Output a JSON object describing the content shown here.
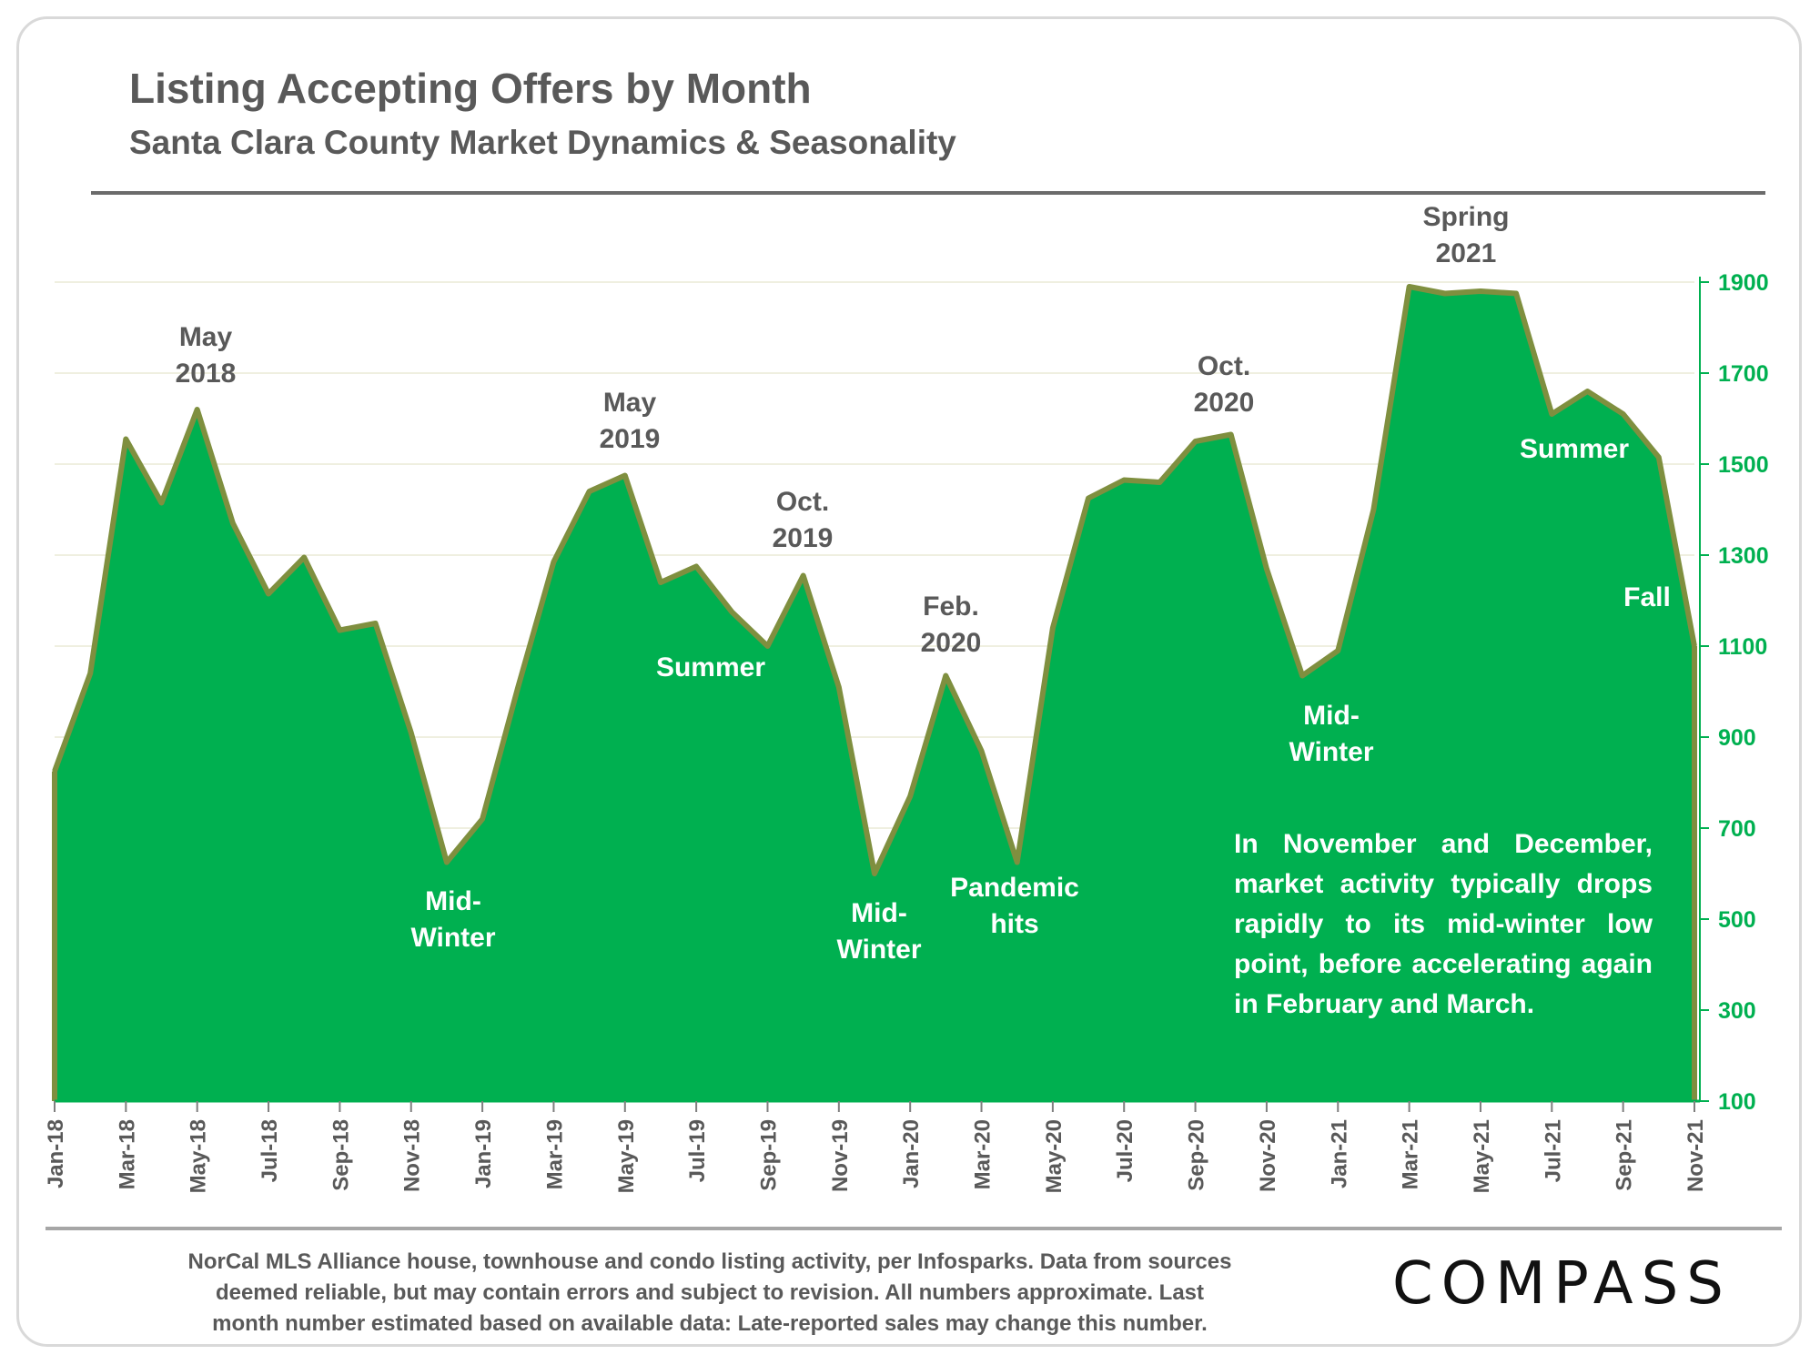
{
  "header": {
    "title": "Listing Accepting Offers by Month",
    "subtitle": "Santa Clara County Market Dynamics & Seasonality"
  },
  "footer": {
    "note_lines": [
      "NorCal MLS Alliance house, townhouse and condo listing activity, per Infosparks. Data from sources",
      "deemed reliable, but may contain errors and subject to revision. All numbers approximate. Last",
      "month number estimated based on available data: Late-reported sales may change this number."
    ],
    "logo": "COMPASS"
  },
  "colors": {
    "fill": "#00b050",
    "stroke": "#7f8f3f",
    "grid": "#efefe0",
    "axis": "#00b050",
    "label": "#595959"
  },
  "chart_data": {
    "type": "area",
    "title": "Listing Accepting Offers by Month",
    "subtitle": "Santa Clara County Market Dynamics & Seasonality",
    "x": [
      "Jan-18",
      "Feb-18",
      "Mar-18",
      "Apr-18",
      "May-18",
      "Jun-18",
      "Jul-18",
      "Aug-18",
      "Sep-18",
      "Oct-18",
      "Nov-18",
      "Dec-18",
      "Jan-19",
      "Feb-19",
      "Mar-19",
      "Apr-19",
      "May-19",
      "Jun-19",
      "Jul-19",
      "Aug-19",
      "Sep-19",
      "Oct-19",
      "Nov-19",
      "Dec-19",
      "Jan-20",
      "Feb-20",
      "Mar-20",
      "Apr-20",
      "May-20",
      "Jun-20",
      "Jul-20",
      "Aug-20",
      "Sep-20",
      "Oct-20",
      "Nov-20",
      "Dec-20",
      "Jan-21",
      "Feb-21",
      "Mar-21",
      "Apr-21",
      "May-21",
      "Jun-21",
      "Jul-21",
      "Aug-21",
      "Sep-21",
      "Oct-21",
      "Nov-21"
    ],
    "x_tick_labels": [
      "Jan-18",
      "Mar-18",
      "May-18",
      "Jul-18",
      "Sep-18",
      "Nov-18",
      "Jan-19",
      "Mar-19",
      "May-19",
      "Jul-19",
      "Sep-19",
      "Nov-19",
      "Jan-20",
      "Mar-20",
      "May-20",
      "Jul-20",
      "Sep-20",
      "Nov-20",
      "Jan-21",
      "Mar-21",
      "May-21",
      "Jul-21",
      "Sep-21",
      "Nov-21"
    ],
    "values": [
      825,
      1040,
      1555,
      1415,
      1620,
      1370,
      1215,
      1295,
      1135,
      1150,
      910,
      625,
      720,
      1010,
      1285,
      1440,
      1475,
      1240,
      1275,
      1175,
      1100,
      1255,
      1010,
      600,
      770,
      1035,
      870,
      625,
      1140,
      1425,
      1465,
      1460,
      1550,
      1565,
      1270,
      1035,
      1090,
      1400,
      1890,
      1875,
      1880,
      1875,
      1610,
      1660,
      1610,
      1515,
      1100
    ],
    "y_axis": {
      "min": 100,
      "max": 1900,
      "ticks": [
        100,
        300,
        500,
        700,
        900,
        1100,
        1300,
        1500,
        1700,
        1900
      ],
      "position": "right"
    },
    "grid": true,
    "annotations": [
      {
        "lines": [
          "May",
          "2018"
        ],
        "color": "dark"
      },
      {
        "lines": [
          "Mid-",
          "Winter"
        ],
        "color": "light"
      },
      {
        "lines": [
          "May",
          "2019"
        ],
        "color": "dark"
      },
      {
        "lines": [
          "Summer"
        ],
        "color": "light"
      },
      {
        "lines": [
          "Oct.",
          "2019"
        ],
        "color": "dark"
      },
      {
        "lines": [
          "Mid-",
          "Winter"
        ],
        "color": "light"
      },
      {
        "lines": [
          "Feb.",
          "2020"
        ],
        "color": "dark"
      },
      {
        "lines": [
          "Pandemic",
          "hits"
        ],
        "color": "light"
      },
      {
        "lines": [
          "Oct.",
          "2020"
        ],
        "color": "dark"
      },
      {
        "lines": [
          "Mid-",
          "Winter"
        ],
        "color": "light"
      },
      {
        "lines": [
          "Spring",
          "2021"
        ],
        "color": "dark"
      },
      {
        "lines": [
          "Summer"
        ],
        "color": "light"
      },
      {
        "lines": [
          "Fall"
        ],
        "color": "light"
      }
    ],
    "note": "In November and December, market activity typically drops rapidly to its mid-winter low point, before accelerating again in February and March."
  }
}
